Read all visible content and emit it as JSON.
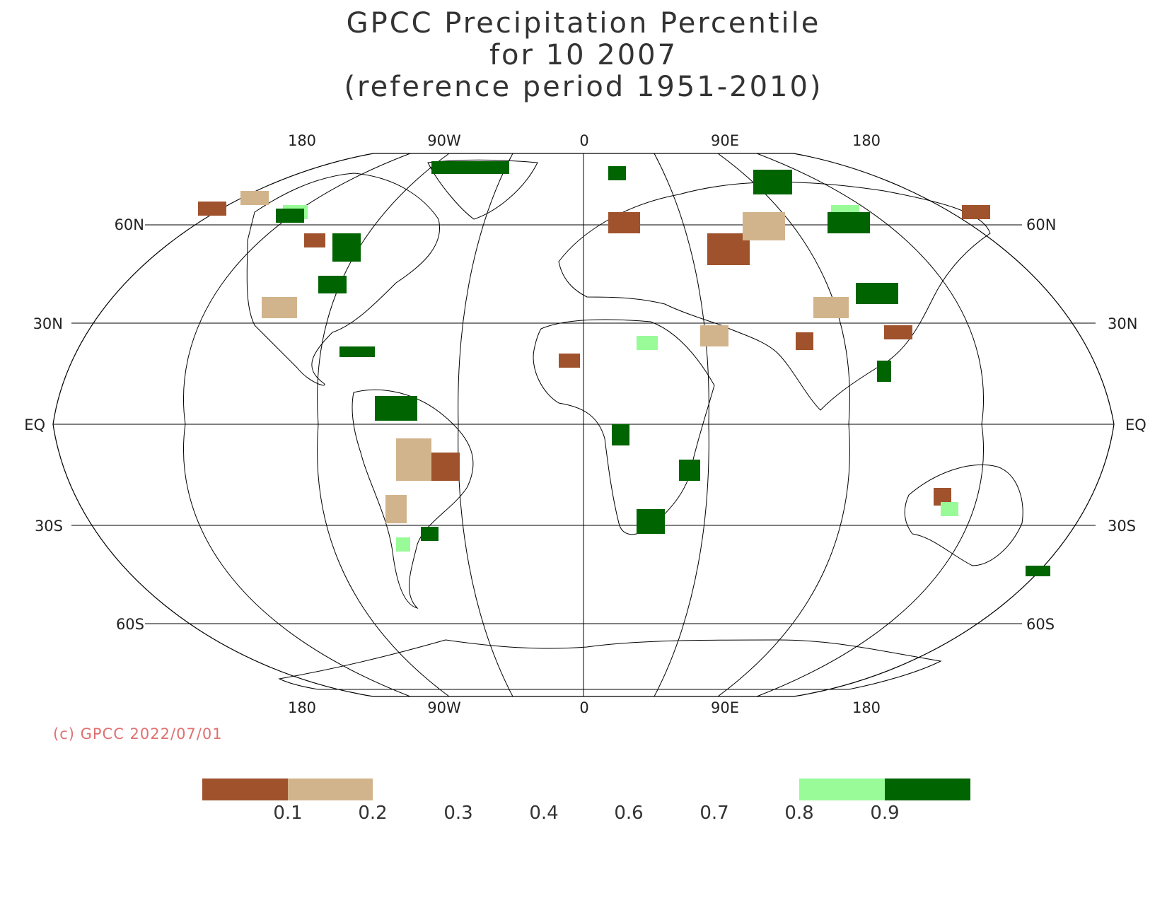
{
  "title": {
    "line1": "GPCC Precipitation Percentile",
    "line2": "for 10 2007",
    "line3": "(reference period 1951-2010)"
  },
  "copyright": "(c) GPCC 2022/07/01",
  "map": {
    "projection": "Robinson",
    "lon_labels_top": [
      "180",
      "90W",
      "0",
      "90E",
      "180"
    ],
    "lon_labels_bottom": [
      "180",
      "90W",
      "0",
      "90E",
      "180"
    ],
    "lat_labels_left": [
      "60N",
      "30N",
      "EQ",
      "30S",
      "60S"
    ],
    "lat_labels_right": [
      "60N",
      "30N",
      "EQ",
      "30S",
      "60S"
    ]
  },
  "legend": {
    "ticks": [
      "0.1",
      "0.2",
      "0.3",
      "0.4",
      "0.6",
      "0.7",
      "0.8",
      "0.9"
    ],
    "colors": {
      "below_0_1": "#a0522d",
      "0_1_to_0_2": "#d2b48c",
      "0_8_to_0_9": "#98fb98",
      "above_0_9": "#006400"
    }
  }
}
